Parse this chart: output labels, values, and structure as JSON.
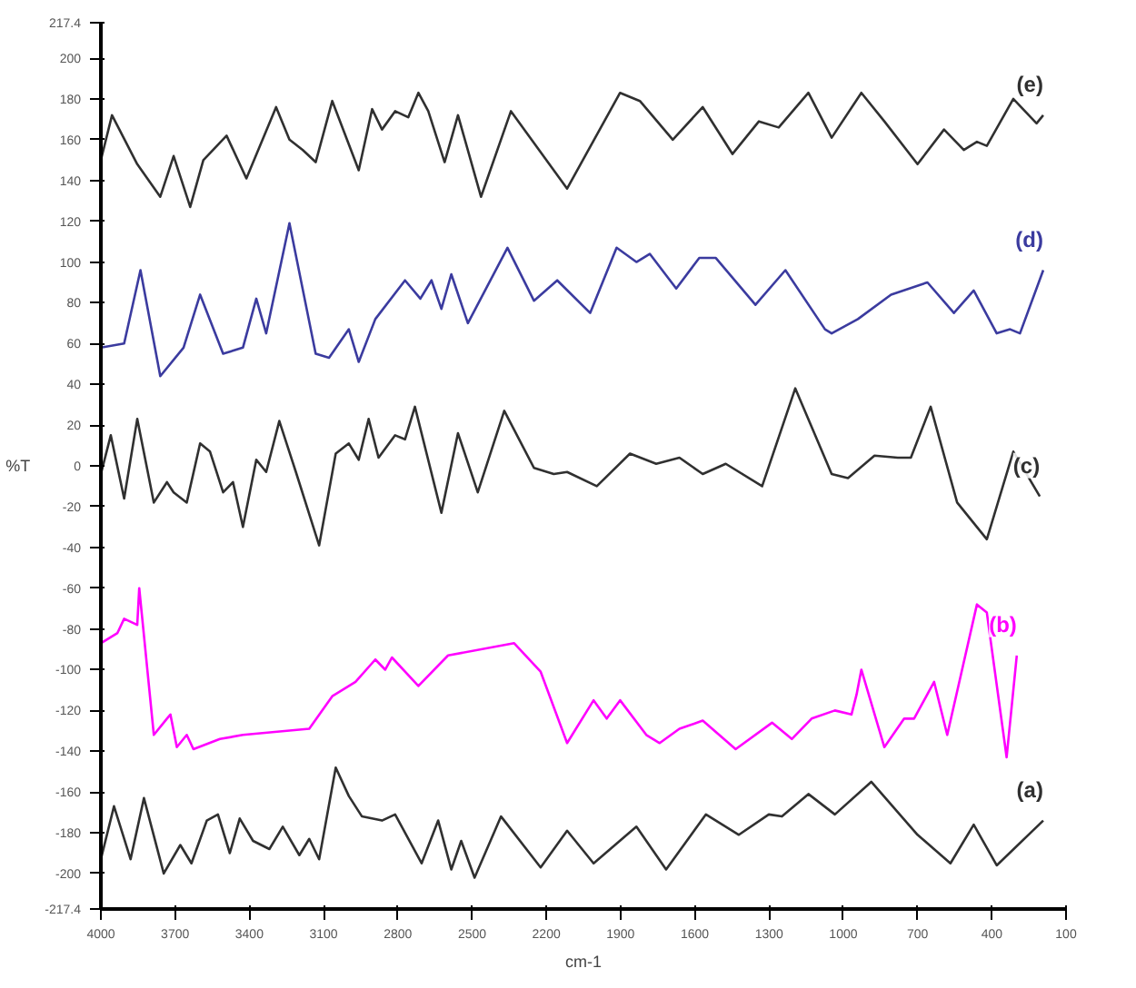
{
  "chart_data": {
    "type": "line",
    "xlabel": "cm-1",
    "ylabel": "%T",
    "xlim": [
      4000,
      100
    ],
    "xticks": [
      4000,
      3700,
      3400,
      3100,
      2800,
      2500,
      2200,
      1900,
      1600,
      1300,
      1000,
      700,
      400,
      100
    ],
    "ylim": [
      -217.4,
      217.4
    ],
    "yticks": [
      -217.4,
      -200,
      -180,
      -160,
      -140,
      -120,
      -100,
      -80,
      -60,
      -40,
      -20,
      0,
      20,
      40,
      60,
      80,
      100,
      120,
      140,
      160,
      180,
      200,
      217.4
    ],
    "grid": false,
    "marker": "none",
    "line_style": "solid",
    "series": [
      {
        "name": "(e)",
        "color": "#303030",
        "x": [
          4000,
          3955,
          3853,
          3760,
          3706,
          3639,
          3586,
          3492,
          3412,
          3292,
          3238,
          3185,
          3132,
          3065,
          2958,
          2904,
          2864,
          2811,
          2758,
          2717,
          2677,
          2611,
          2557,
          2464,
          2343,
          2116,
          1902,
          1822,
          1689,
          1568,
          1448,
          1341,
          1261,
          1141,
          1047,
          927,
          834,
          700,
          593,
          513,
          460,
          420,
          313,
          219,
          192
        ],
        "values": [
          150,
          172,
          148,
          132,
          152,
          127,
          150,
          162,
          141,
          176,
          160,
          155,
          149,
          179,
          145,
          175,
          165,
          174,
          171,
          183,
          174,
          149,
          172,
          132,
          174,
          136,
          183,
          179,
          160,
          176,
          153,
          169,
          166,
          183,
          161,
          183,
          169,
          148,
          165,
          155,
          159,
          157,
          180,
          168,
          172
        ]
      },
      {
        "name": "(d)",
        "color": "#3b3b9f",
        "x": [
          4000,
          3906,
          3840,
          3760,
          3666,
          3599,
          3506,
          3426,
          3372,
          3332,
          3238,
          3132,
          3078,
          2998,
          2958,
          2891,
          2771,
          2709,
          2664,
          2624,
          2584,
          2517,
          2357,
          2250,
          2156,
          2023,
          1916,
          1836,
          1782,
          1675,
          1582,
          1515,
          1355,
          1234,
          1074,
          1047,
          941,
          807,
          660,
          553,
          473,
          380,
          326,
          286,
          192
        ],
        "values": [
          58,
          60,
          96,
          44,
          58,
          84,
          55,
          58,
          82,
          65,
          119,
          55,
          53,
          67,
          51,
          72,
          91,
          82,
          91,
          77,
          94,
          70,
          107,
          81,
          91,
          75,
          107,
          100,
          104,
          87,
          102,
          102,
          79,
          96,
          67,
          65,
          72,
          84,
          90,
          75,
          86,
          65,
          67,
          65,
          96
        ]
      },
      {
        "name": "(c)",
        "color": "#303030",
        "x": [
          4000,
          3960,
          3906,
          3853,
          3786,
          3733,
          3706,
          3653,
          3599,
          3559,
          3506,
          3466,
          3426,
          3372,
          3332,
          3279,
          3212,
          3118,
          3051,
          2998,
          2958,
          2918,
          2878,
          2811,
          2771,
          2731,
          2624,
          2557,
          2477,
          2370,
          2250,
          2170,
          2116,
          1996,
          1862,
          1756,
          1662,
          1568,
          1475,
          1328,
          1194,
          1047,
          981,
          874,
          780,
          727,
          647,
          540,
          420,
          313,
          206
        ],
        "values": [
          -4,
          15,
          -16,
          23,
          -18,
          -8,
          -13,
          -18,
          11,
          7,
          -13,
          -8,
          -30,
          3,
          -3,
          22,
          -3,
          -39,
          6,
          11,
          3,
          23,
          4,
          15,
          13,
          29,
          -23,
          16,
          -13,
          27,
          -1,
          -4,
          -3,
          -10,
          6,
          1,
          4,
          -4,
          1,
          -10,
          38,
          -4,
          -6,
          5,
          4,
          4,
          29,
          -18,
          -36,
          7,
          -15
        ]
      },
      {
        "name": "(b)",
        "color": "#ff00ff",
        "x": [
          4000,
          3933,
          3906,
          3853,
          3845,
          3786,
          3733,
          3719,
          3693,
          3653,
          3626,
          3519,
          3426,
          3158,
          3065,
          2971,
          2891,
          2851,
          2824,
          2717,
          2597,
          2330,
          2223,
          2116,
          2009,
          1956,
          1902,
          1796,
          1742,
          1662,
          1568,
          1435,
          1288,
          1208,
          1128,
          1034,
          967,
          946,
          927,
          834,
          754,
          714,
          633,
          580,
          460,
          420,
          340,
          299
        ],
        "values": [
          -87,
          -82,
          -75,
          -78,
          -60,
          -132,
          -124,
          -122,
          -138,
          -132,
          -139,
          -134,
          -132,
          -129,
          -113,
          -106,
          -95,
          -100,
          -94,
          -108,
          -93,
          -87,
          -101,
          -136,
          -115,
          -124,
          -115,
          -132,
          -136,
          -129,
          -125,
          -139,
          -126,
          -134,
          -124,
          -120,
          -122,
          -112,
          -100,
          -138,
          -124,
          -124,
          -106,
          -132,
          -68,
          -72,
          -143,
          -93
        ]
      },
      {
        "name": "(a)",
        "color": "#303030",
        "x": [
          4000,
          3947,
          3880,
          3826,
          3746,
          3679,
          3634,
          3572,
          3527,
          3479,
          3439,
          3385,
          3319,
          3265,
          3198,
          3158,
          3118,
          3051,
          2998,
          2945,
          2864,
          2811,
          2704,
          2637,
          2584,
          2544,
          2490,
          2383,
          2223,
          2116,
          2009,
          1836,
          1716,
          1555,
          1422,
          1301,
          1248,
          1141,
          1034,
          887,
          700,
          567,
          473,
          380,
          192
        ],
        "values": [
          -193,
          -167,
          -193,
          -163,
          -200,
          -186,
          -195,
          -174,
          -171,
          -190,
          -173,
          -184,
          -188,
          -177,
          -191,
          -183,
          -193,
          -148,
          -162,
          -172,
          -174,
          -171,
          -195,
          -174,
          -198,
          -184,
          -202,
          -172,
          -197,
          -179,
          -195,
          -177,
          -198,
          -171,
          -181,
          -171,
          -172,
          -161,
          -171,
          -155,
          -181,
          -195,
          -176,
          -196,
          -174
        ]
      }
    ]
  }
}
